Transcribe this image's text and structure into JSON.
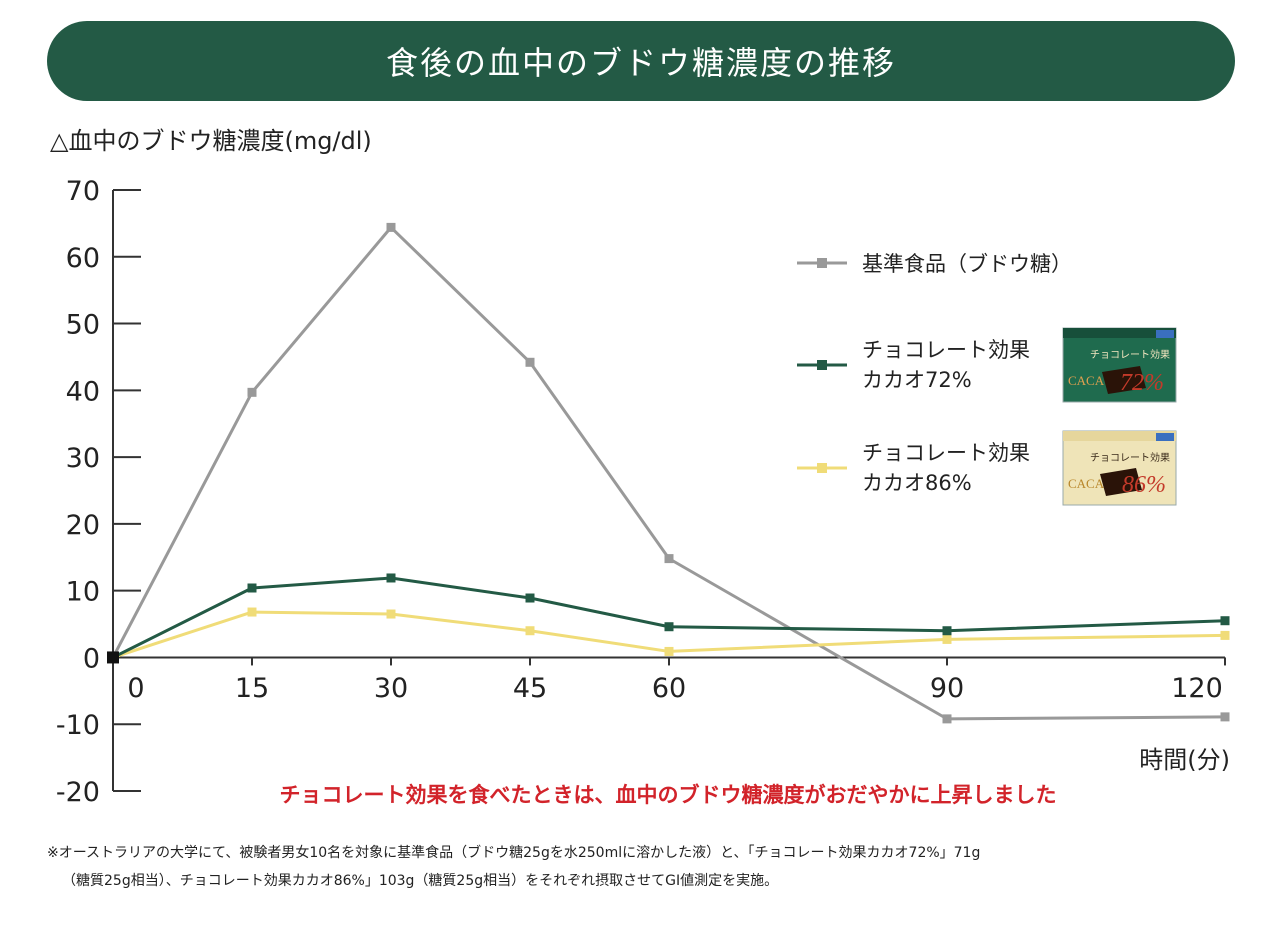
{
  "header": {
    "title": "食後の血中のブドウ糖濃度の推移"
  },
  "colors": {
    "banner": "#235a45",
    "reference": "#999999",
    "cacao72": "#235a45",
    "cacao86": "#f0dc78",
    "highlight": "#d2232a"
  },
  "chart_data": {
    "type": "line",
    "title": "食後の血中のブドウ糖濃度の推移",
    "ylabel": "△血中のブドウ糖濃度(mg/dl)",
    "xlabel": "時間(分)",
    "ylim": [
      -20,
      70
    ],
    "xlim": [
      0,
      120
    ],
    "yticks": [
      "70",
      "60",
      "50",
      "40",
      "30",
      "20",
      "10",
      "0",
      "-10",
      "-20"
    ],
    "xticks": [
      "0",
      "15",
      "30",
      "45",
      "60",
      "90",
      "120"
    ],
    "x": [
      0,
      15,
      30,
      45,
      60,
      90,
      120
    ],
    "grid": false,
    "legend_position": "right",
    "series": [
      {
        "name": "基準食品（ブドウ糖）",
        "color": "#999999",
        "values": [
          0,
          39.7,
          64.4,
          44.2,
          14.8,
          -9.2,
          -8.9
        ]
      },
      {
        "name": "チョコレート効果 カカオ72%",
        "color": "#235a45",
        "values": [
          0,
          10.4,
          11.9,
          8.9,
          4.6,
          4.0,
          5.5
        ]
      },
      {
        "name": "チョコレート効果 カカオ86%",
        "color": "#f0dc78",
        "values": [
          0,
          6.8,
          6.5,
          4.0,
          0.9,
          2.7,
          3.3
        ]
      }
    ],
    "legend": [
      {
        "line1": "基準食品（ブドウ糖）",
        "line2": ""
      },
      {
        "line1": "チョコレート効果",
        "line2": "カカオ72%"
      },
      {
        "line1": "チョコレート効果",
        "line2": "カカオ86%"
      }
    ],
    "highlight": "チョコレート効果を食べたときは、血中のブドウ糖濃度がおだやかに上昇しました"
  },
  "products": {
    "p72": {
      "brand": "チョコレート効果",
      "cacao": "CACAO",
      "percent": "72%"
    },
    "p86": {
      "brand": "チョコレート効果",
      "cacao": "CACAO",
      "percent": "86%"
    }
  },
  "footnote": {
    "line1": "※オーストラリアの大学にて、被験者男女10名を対象に基準食品（ブドウ糖25gを水250mlに溶かした液）と、「チョコレート効果カカオ72%」71g",
    "line2": "（糖質25g相当）、チョコレート効果カカオ86%」103g（糖質25g相当）をそれぞれ摂取させてGI値測定を実施。"
  }
}
